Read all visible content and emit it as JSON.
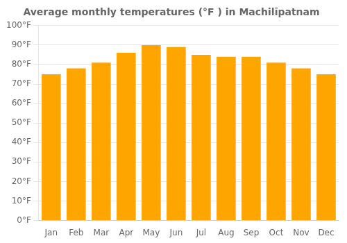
{
  "chart_data": {
    "type": "bar",
    "title": "Average monthly temperatures (°F ) in Machilīpatnam",
    "categories": [
      "Jan",
      "Feb",
      "Mar",
      "Apr",
      "May",
      "Jun",
      "Jul",
      "Aug",
      "Sep",
      "Oct",
      "Nov",
      "Dec"
    ],
    "values": [
      75,
      78,
      81,
      86,
      90,
      89,
      85,
      84,
      84,
      81,
      78,
      75
    ],
    "color": "#FFA500",
    "ylim": [
      0,
      100
    ],
    "yticks": [
      {
        "value": 0,
        "label": "0°F"
      },
      {
        "value": 10,
        "label": "10°F"
      },
      {
        "value": 20,
        "label": "20°F"
      },
      {
        "value": 30,
        "label": "30°F"
      },
      {
        "value": 40,
        "label": "40°F"
      },
      {
        "value": 50,
        "label": "50°F"
      },
      {
        "value": 60,
        "label": "60°F"
      },
      {
        "value": 70,
        "label": "70°F"
      },
      {
        "value": 80,
        "label": "80°F"
      },
      {
        "value": 90,
        "label": "90°F"
      },
      {
        "value": 100,
        "label": "100°F"
      }
    ],
    "grid": true
  }
}
